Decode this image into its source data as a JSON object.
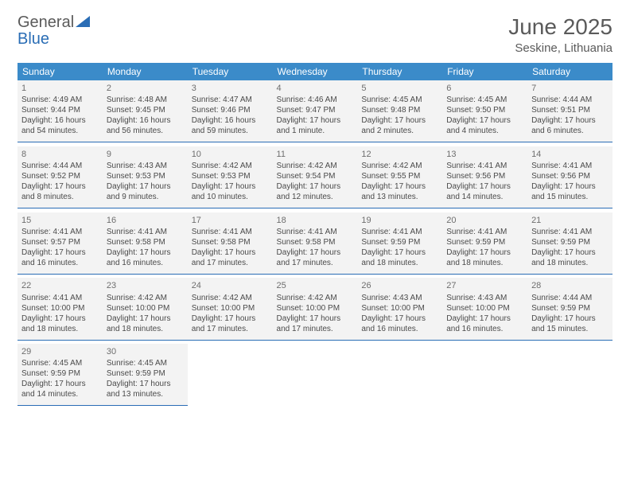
{
  "logo": {
    "general": "General",
    "blue": "Blue"
  },
  "title": "June 2025",
  "location": "Seskine, Lithuania",
  "colors": {
    "header_bg": "#3b8bc9",
    "header_text": "#ffffff",
    "cell_bg": "#f3f3f3",
    "cell_text": "#4a4a4a",
    "divider": "#2a6db5",
    "title_color": "#5a5a5a",
    "logo_blue": "#2a6db5"
  },
  "dayNames": [
    "Sunday",
    "Monday",
    "Tuesday",
    "Wednesday",
    "Thursday",
    "Friday",
    "Saturday"
  ],
  "weeks": [
    [
      {
        "n": "1",
        "sr": "Sunrise: 4:49 AM",
        "ss": "Sunset: 9:44 PM",
        "d1": "Daylight: 16 hours",
        "d2": "and 54 minutes."
      },
      {
        "n": "2",
        "sr": "Sunrise: 4:48 AM",
        "ss": "Sunset: 9:45 PM",
        "d1": "Daylight: 16 hours",
        "d2": "and 56 minutes."
      },
      {
        "n": "3",
        "sr": "Sunrise: 4:47 AM",
        "ss": "Sunset: 9:46 PM",
        "d1": "Daylight: 16 hours",
        "d2": "and 59 minutes."
      },
      {
        "n": "4",
        "sr": "Sunrise: 4:46 AM",
        "ss": "Sunset: 9:47 PM",
        "d1": "Daylight: 17 hours",
        "d2": "and 1 minute."
      },
      {
        "n": "5",
        "sr": "Sunrise: 4:45 AM",
        "ss": "Sunset: 9:48 PM",
        "d1": "Daylight: 17 hours",
        "d2": "and 2 minutes."
      },
      {
        "n": "6",
        "sr": "Sunrise: 4:45 AM",
        "ss": "Sunset: 9:50 PM",
        "d1": "Daylight: 17 hours",
        "d2": "and 4 minutes."
      },
      {
        "n": "7",
        "sr": "Sunrise: 4:44 AM",
        "ss": "Sunset: 9:51 PM",
        "d1": "Daylight: 17 hours",
        "d2": "and 6 minutes."
      }
    ],
    [
      {
        "n": "8",
        "sr": "Sunrise: 4:44 AM",
        "ss": "Sunset: 9:52 PM",
        "d1": "Daylight: 17 hours",
        "d2": "and 8 minutes."
      },
      {
        "n": "9",
        "sr": "Sunrise: 4:43 AM",
        "ss": "Sunset: 9:53 PM",
        "d1": "Daylight: 17 hours",
        "d2": "and 9 minutes."
      },
      {
        "n": "10",
        "sr": "Sunrise: 4:42 AM",
        "ss": "Sunset: 9:53 PM",
        "d1": "Daylight: 17 hours",
        "d2": "and 10 minutes."
      },
      {
        "n": "11",
        "sr": "Sunrise: 4:42 AM",
        "ss": "Sunset: 9:54 PM",
        "d1": "Daylight: 17 hours",
        "d2": "and 12 minutes."
      },
      {
        "n": "12",
        "sr": "Sunrise: 4:42 AM",
        "ss": "Sunset: 9:55 PM",
        "d1": "Daylight: 17 hours",
        "d2": "and 13 minutes."
      },
      {
        "n": "13",
        "sr": "Sunrise: 4:41 AM",
        "ss": "Sunset: 9:56 PM",
        "d1": "Daylight: 17 hours",
        "d2": "and 14 minutes."
      },
      {
        "n": "14",
        "sr": "Sunrise: 4:41 AM",
        "ss": "Sunset: 9:56 PM",
        "d1": "Daylight: 17 hours",
        "d2": "and 15 minutes."
      }
    ],
    [
      {
        "n": "15",
        "sr": "Sunrise: 4:41 AM",
        "ss": "Sunset: 9:57 PM",
        "d1": "Daylight: 17 hours",
        "d2": "and 16 minutes."
      },
      {
        "n": "16",
        "sr": "Sunrise: 4:41 AM",
        "ss": "Sunset: 9:58 PM",
        "d1": "Daylight: 17 hours",
        "d2": "and 16 minutes."
      },
      {
        "n": "17",
        "sr": "Sunrise: 4:41 AM",
        "ss": "Sunset: 9:58 PM",
        "d1": "Daylight: 17 hours",
        "d2": "and 17 minutes."
      },
      {
        "n": "18",
        "sr": "Sunrise: 4:41 AM",
        "ss": "Sunset: 9:58 PM",
        "d1": "Daylight: 17 hours",
        "d2": "and 17 minutes."
      },
      {
        "n": "19",
        "sr": "Sunrise: 4:41 AM",
        "ss": "Sunset: 9:59 PM",
        "d1": "Daylight: 17 hours",
        "d2": "and 18 minutes."
      },
      {
        "n": "20",
        "sr": "Sunrise: 4:41 AM",
        "ss": "Sunset: 9:59 PM",
        "d1": "Daylight: 17 hours",
        "d2": "and 18 minutes."
      },
      {
        "n": "21",
        "sr": "Sunrise: 4:41 AM",
        "ss": "Sunset: 9:59 PM",
        "d1": "Daylight: 17 hours",
        "d2": "and 18 minutes."
      }
    ],
    [
      {
        "n": "22",
        "sr": "Sunrise: 4:41 AM",
        "ss": "Sunset: 10:00 PM",
        "d1": "Daylight: 17 hours",
        "d2": "and 18 minutes."
      },
      {
        "n": "23",
        "sr": "Sunrise: 4:42 AM",
        "ss": "Sunset: 10:00 PM",
        "d1": "Daylight: 17 hours",
        "d2": "and 18 minutes."
      },
      {
        "n": "24",
        "sr": "Sunrise: 4:42 AM",
        "ss": "Sunset: 10:00 PM",
        "d1": "Daylight: 17 hours",
        "d2": "and 17 minutes."
      },
      {
        "n": "25",
        "sr": "Sunrise: 4:42 AM",
        "ss": "Sunset: 10:00 PM",
        "d1": "Daylight: 17 hours",
        "d2": "and 17 minutes."
      },
      {
        "n": "26",
        "sr": "Sunrise: 4:43 AM",
        "ss": "Sunset: 10:00 PM",
        "d1": "Daylight: 17 hours",
        "d2": "and 16 minutes."
      },
      {
        "n": "27",
        "sr": "Sunrise: 4:43 AM",
        "ss": "Sunset: 10:00 PM",
        "d1": "Daylight: 17 hours",
        "d2": "and 16 minutes."
      },
      {
        "n": "28",
        "sr": "Sunrise: 4:44 AM",
        "ss": "Sunset: 9:59 PM",
        "d1": "Daylight: 17 hours",
        "d2": "and 15 minutes."
      }
    ],
    [
      {
        "n": "29",
        "sr": "Sunrise: 4:45 AM",
        "ss": "Sunset: 9:59 PM",
        "d1": "Daylight: 17 hours",
        "d2": "and 14 minutes."
      },
      {
        "n": "30",
        "sr": "Sunrise: 4:45 AM",
        "ss": "Sunset: 9:59 PM",
        "d1": "Daylight: 17 hours",
        "d2": "and 13 minutes."
      },
      null,
      null,
      null,
      null,
      null
    ]
  ]
}
